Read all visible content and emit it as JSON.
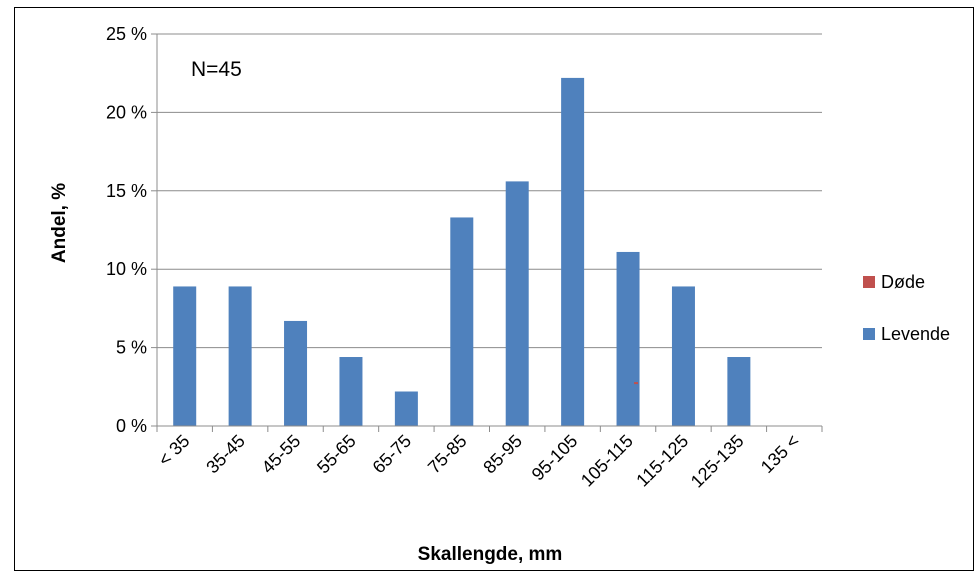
{
  "chart_data": {
    "type": "bar",
    "title": "",
    "xlabel": "Skallengde, mm",
    "ylabel": "Andel, %",
    "annotation": "N=45",
    "categories": [
      "< 35",
      "35-45",
      "45-55",
      "55-65",
      "65-75",
      "75-85",
      "85-95",
      "95-105",
      "105-115",
      "115-125",
      "125-135",
      "135 <"
    ],
    "y_ticks": [
      "0 %",
      "5 %",
      "10 %",
      "15 %",
      "20 %",
      "25 %"
    ],
    "ylim": [
      0,
      25
    ],
    "grid": true,
    "legend_position": "right",
    "series": [
      {
        "name": "Døde",
        "color": "#c0504d",
        "values": [
          0,
          0,
          0,
          0,
          0,
          0,
          0,
          0,
          0,
          0,
          0,
          0
        ]
      },
      {
        "name": "Levende",
        "color": "#4f81bd",
        "values": [
          8.9,
          8.9,
          6.7,
          4.4,
          2.2,
          13.3,
          15.6,
          22.2,
          11.1,
          8.9,
          4.4,
          0
        ]
      }
    ]
  }
}
